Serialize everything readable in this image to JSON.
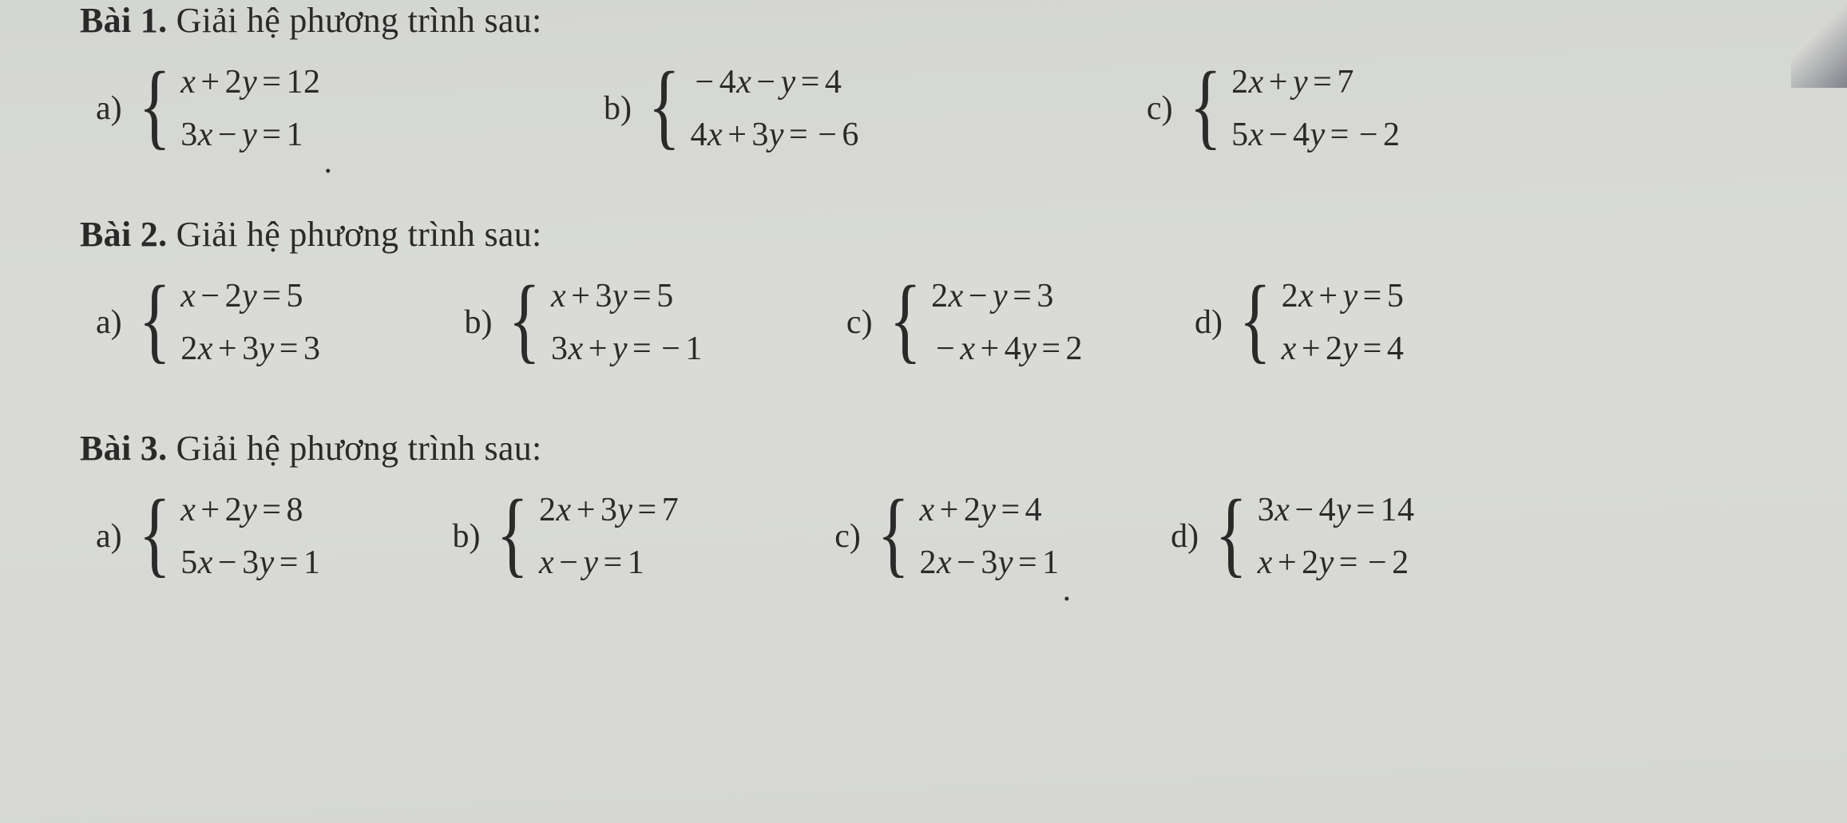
{
  "typography": {
    "font_family": "Times New Roman",
    "title_font_size_pt": 33,
    "equation_font_size_pt": 32,
    "text_color": "#2a2a2a"
  },
  "background_color": "#d8d9d6",
  "exercises": [
    {
      "id": "bai1",
      "label_bold": "Bài 1.",
      "label_rest": " Giải hệ phương trình sau:",
      "items": [
        {
          "letter": "a)",
          "eq1": "x + 2y = 12",
          "eq2": "3x − y = 1",
          "trailing_dot": "."
        },
        {
          "letter": "b)",
          "eq1": "−4x − y = 4",
          "eq2": "4x + 3y = −6"
        },
        {
          "letter": "c)",
          "eq1": "2x + y = 7",
          "eq2": "5x − 4y = −2"
        }
      ]
    },
    {
      "id": "bai2",
      "label_bold": "Bài 2.",
      "label_rest": " Giải hệ phương trình sau:",
      "items": [
        {
          "letter": "a)",
          "eq1": "x − 2y = 5",
          "eq2": "2x + 3y = 3"
        },
        {
          "letter": "b)",
          "eq1": "x + 3y = 5",
          "eq2": "3x + y = −1"
        },
        {
          "letter": "c)",
          "eq1": "2x − y = 3",
          "eq2": "−x + 4y = 2"
        },
        {
          "letter": "d)",
          "eq1": "2x + y = 5",
          "eq2": "x + 2y = 4"
        }
      ]
    },
    {
      "id": "bai3",
      "label_bold": "Bài 3.",
      "label_rest": " Giải hệ phương trình sau:",
      "items": [
        {
          "letter": "a)",
          "eq1": "x + 2y = 8",
          "eq2": "5x − 3y = 1"
        },
        {
          "letter": "b)",
          "eq1": "2x + 3y = 7",
          "eq2": "x − y = 1"
        },
        {
          "letter": "c)",
          "eq1": "x + 2y = 4",
          "eq2": "2x − 3y = 1",
          "trailing_dot": "."
        },
        {
          "letter": "d)",
          "eq1": "3x − 4y = 14",
          "eq2": "x + 2y = −2"
        }
      ]
    }
  ]
}
